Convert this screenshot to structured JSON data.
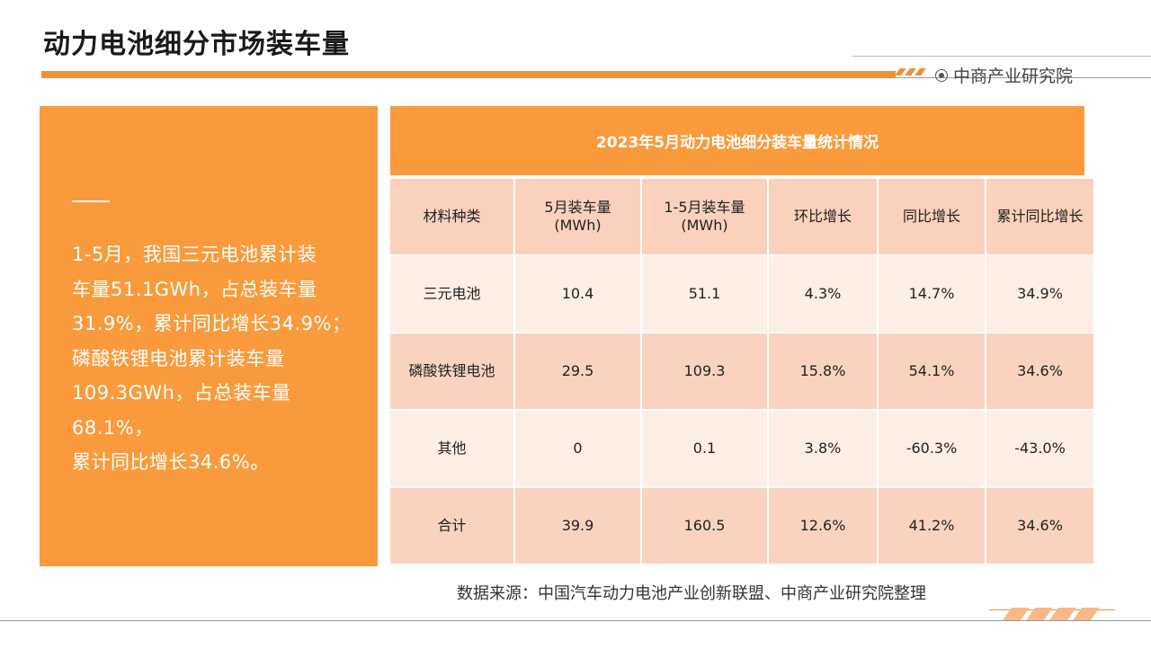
{
  "page": {
    "title": "动力电池细分市场装车量",
    "brand": "中商产业研究院",
    "source": "数据来源：中国汽车动力电池产业创新联盟、中商产业研究院整理"
  },
  "summary": {
    "lines": [
      "1-5月，我国三元电池累计装",
      "车量51.1GWh，占总装车量",
      "31.9%，累计同比增长34.9%；",
      "磷酸铁锂电池累计装车量",
      "109.3GWh，占总装车量68.1%，",
      "累计同比增长34.6%。"
    ]
  },
  "table": {
    "title": "2023年5月动力电池细分装车量统计情况",
    "headers": [
      "材料种类",
      "5月装车量\n(MWh)",
      "1-5月装车量\n(MWh)",
      "环比增长",
      "同比增长",
      "累计同比增长"
    ],
    "rows": [
      [
        "三元电池",
        "10.4",
        "51.1",
        "4.3%",
        "14.7%",
        "34.9%"
      ],
      [
        "磷酸铁锂电池",
        "29.5",
        "109.3",
        "15.8%",
        "54.1%",
        "34.6%"
      ],
      [
        "其他",
        "0",
        "0.1",
        "3.8%",
        "-60.3%",
        "-43.0%"
      ],
      [
        "合计",
        "39.9",
        "160.5",
        "12.6%",
        "41.2%",
        "34.6%"
      ]
    ]
  },
  "colors": {
    "accent": "#f99b3c",
    "header_row": "#fad1bd",
    "row_light": "#fdeee6",
    "row_dark": "#fad3c0"
  }
}
